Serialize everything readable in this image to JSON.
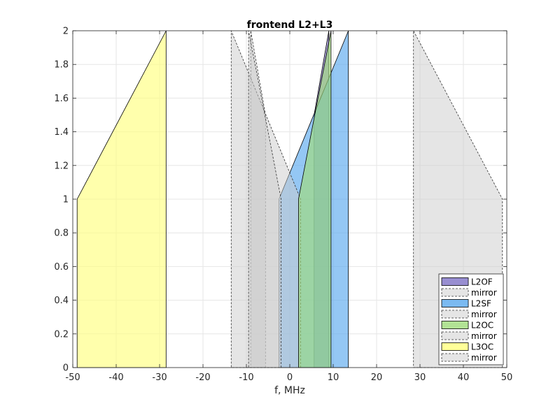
{
  "chart_data": {
    "type": "area",
    "title": "frontend L2+L3",
    "xlabel": "f, MHz",
    "ylabel": "",
    "xlim": [
      -50,
      50
    ],
    "ylim": [
      0,
      2
    ],
    "xticks": [
      -50,
      -40,
      -30,
      -20,
      -10,
      0,
      10,
      20,
      30,
      40,
      50
    ],
    "yticks": [
      0,
      0.2,
      0.4,
      0.6,
      0.8,
      1,
      1.2,
      1.4,
      1.6,
      1.8,
      2
    ],
    "xtick_labels": [
      "-50",
      "-40",
      "-30",
      "-20",
      "-10",
      "0",
      "10",
      "20",
      "30",
      "40",
      "50"
    ],
    "ytick_labels": [
      "0",
      "0.2",
      "0.4",
      "0.6",
      "0.8",
      "1",
      "1.2",
      "1.4",
      "1.6",
      "1.8",
      "2"
    ],
    "grid": true,
    "legend_position": "bottom-right",
    "series": [
      {
        "name": "L2OF",
        "role": "main",
        "color": "#7e72c6",
        "points": [
          [
            5.6,
            0
          ],
          [
            5.6,
            1.5
          ],
          [
            9.0,
            2
          ],
          [
            9.0,
            0
          ]
        ]
      },
      {
        "name": "mirror",
        "role": "mirror",
        "color": "#cccccc",
        "points": [
          [
            -5.6,
            0
          ],
          [
            -5.6,
            1.5
          ],
          [
            -9.0,
            2
          ],
          [
            -9.0,
            0
          ]
        ]
      },
      {
        "name": "L2SF",
        "role": "main",
        "color": "#5aa9ee",
        "points": [
          [
            -2.5,
            0
          ],
          [
            -2.5,
            1
          ],
          [
            13.5,
            2
          ],
          [
            13.5,
            0
          ]
        ]
      },
      {
        "name": "mirror",
        "role": "mirror",
        "color": "#cccccc",
        "points": [
          [
            2.5,
            0
          ],
          [
            2.5,
            1
          ],
          [
            -13.5,
            2
          ],
          [
            -13.5,
            0
          ]
        ]
      },
      {
        "name": "L2OC",
        "role": "main",
        "color": "#9fdc7a",
        "points": [
          [
            2.0,
            0
          ],
          [
            2.0,
            1
          ],
          [
            9.5,
            2
          ],
          [
            9.5,
            0
          ]
        ]
      },
      {
        "name": "mirror",
        "role": "mirror",
        "color": "#cccccc",
        "points": [
          [
            -2.0,
            0
          ],
          [
            -2.0,
            1
          ],
          [
            -9.5,
            2
          ],
          [
            -9.5,
            0
          ]
        ]
      },
      {
        "name": "L3OC",
        "role": "main",
        "color": "#ffff80",
        "points": [
          [
            -49.0,
            0
          ],
          [
            -49.0,
            1
          ],
          [
            -28.5,
            2
          ],
          [
            -28.5,
            0
          ]
        ]
      },
      {
        "name": "mirror",
        "role": "mirror",
        "color": "#cccccc",
        "points": [
          [
            49.0,
            0
          ],
          [
            49.0,
            1
          ],
          [
            28.5,
            2
          ],
          [
            28.5,
            0
          ]
        ]
      }
    ]
  }
}
